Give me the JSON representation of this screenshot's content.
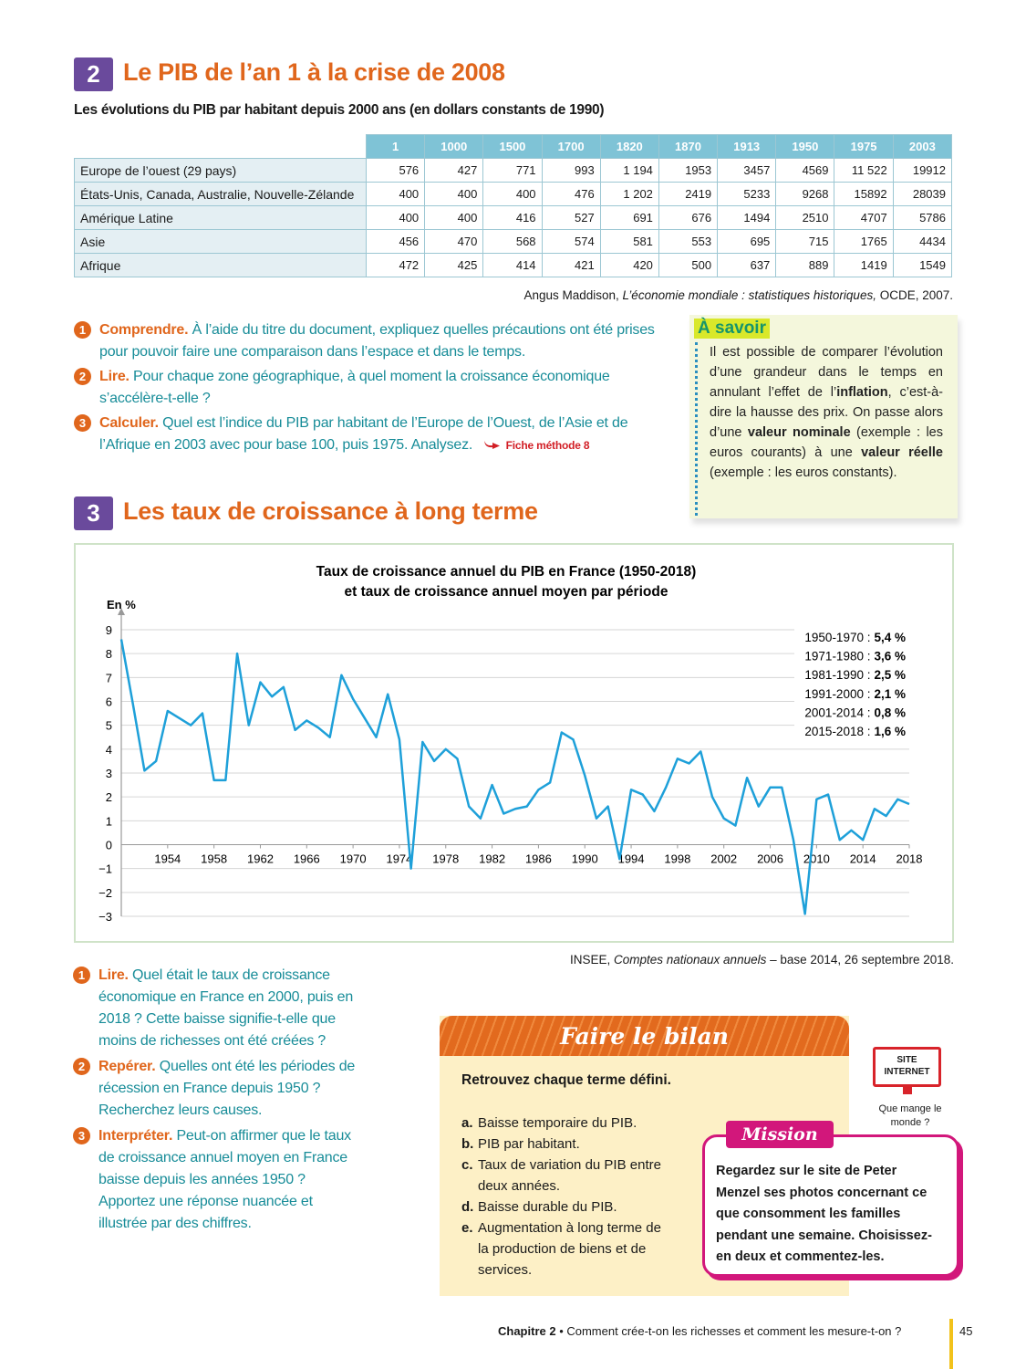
{
  "section2": {
    "number": "2",
    "title": "Le PIB de l’an 1 à la crise de 2008",
    "subtitle": "Les évolutions du PIB par habitant depuis 2000 ans (en dollars constants de 1990)"
  },
  "table": {
    "header": [
      "1",
      "1000",
      "1500",
      "1700",
      "1820",
      "1870",
      "1913",
      "1950",
      "1975",
      "2003"
    ],
    "rows": [
      [
        "Europe de l’ouest (29 pays)",
        "576",
        "427",
        "771",
        "993",
        "1 194",
        "1953",
        "3457",
        "4569",
        "11 522",
        "19912"
      ],
      [
        "États-Unis, Canada, Australie, Nouvelle-Zélande",
        "400",
        "400",
        "400",
        "476",
        "1 202",
        "2419",
        "5233",
        "9268",
        "15892",
        "28039"
      ],
      [
        "Amérique Latine",
        "400",
        "400",
        "416",
        "527",
        "691",
        "676",
        "1494",
        "2510",
        "4707",
        "5786"
      ],
      [
        "Asie",
        "456",
        "470",
        "568",
        "574",
        "581",
        "553",
        "695",
        "715",
        "1765",
        "4434"
      ],
      [
        "Afrique",
        "472",
        "425",
        "414",
        "421",
        "420",
        "500",
        "637",
        "889",
        "1419",
        "1549"
      ]
    ]
  },
  "source1": [
    "Angus Maddison, ",
    "L’économie mondiale : statistiques historiques,",
    " OCDE, 2007."
  ],
  "questions1": [
    {
      "number": "1",
      "label": "Comprendre.",
      "text": "À l’aide du titre du document, expliquez quelles précautions ont été prises pour pouvoir faire une comparaison dans l’espace et dans le temps."
    },
    {
      "number": "2",
      "label": "Lire.",
      "text": "Pour chaque zone géographique, à quel moment la croissance économique s’accélère-t-elle ?"
    },
    {
      "number": "3",
      "label": "Calculer.",
      "text": "Quel est l’indice du PIB par habitant de l’Europe de l’Ouest, de l’Asie et de l’Afrique en 2003 avec pour base 100, puis 1975. Analysez.",
      "method": "Fiche méthode 8"
    }
  ],
  "a_savoir": {
    "title": "À savoir",
    "parts": [
      "Il est possible de comparer l’évolution d’une grandeur dans le temps en annulant l’effet de l’",
      "inflation",
      ", c’est-à-dire la hausse des prix. On passe alors d’une ",
      "valeur nominale",
      " (exemple : les euros courants) à une ",
      "valeur réelle",
      " (exemple : les euros constants)."
    ]
  },
  "section3": {
    "number": "3",
    "title": "Les taux de croissance à long terme"
  },
  "chart_data": {
    "type": "line",
    "title": "Taux de croissance annuel du PIB en France (1950-2018)",
    "subtitle": "et taux de croissance annuel moyen par période",
    "y_label": "En %",
    "color": "#1ea0d9",
    "grid": true,
    "x": [
      1950,
      1951,
      1952,
      1953,
      1954,
      1955,
      1956,
      1957,
      1958,
      1959,
      1960,
      1961,
      1962,
      1963,
      1964,
      1965,
      1966,
      1967,
      1968,
      1969,
      1970,
      1971,
      1972,
      1973,
      1974,
      1975,
      1976,
      1977,
      1978,
      1979,
      1980,
      1981,
      1982,
      1983,
      1984,
      1985,
      1986,
      1987,
      1988,
      1989,
      1990,
      1991,
      1992,
      1993,
      1994,
      1995,
      1996,
      1997,
      1998,
      1999,
      2000,
      2001,
      2002,
      2003,
      2004,
      2005,
      2006,
      2007,
      2008,
      2009,
      2010,
      2011,
      2012,
      2013,
      2014,
      2015,
      2016,
      2017,
      2018
    ],
    "values": [
      8.6,
      5.9,
      3.1,
      3.5,
      5.6,
      5.3,
      5.0,
      5.5,
      2.7,
      2.7,
      8.0,
      5.0,
      6.8,
      6.2,
      6.6,
      4.8,
      5.2,
      4.9,
      4.5,
      7.1,
      6.1,
      5.3,
      4.5,
      6.3,
      4.4,
      -1.0,
      4.3,
      3.5,
      4.0,
      3.6,
      1.6,
      1.1,
      2.5,
      1.3,
      1.5,
      1.6,
      2.3,
      2.6,
      4.7,
      4.4,
      2.9,
      1.1,
      1.6,
      -0.6,
      2.3,
      2.1,
      1.4,
      2.4,
      3.6,
      3.4,
      3.9,
      2.0,
      1.1,
      0.8,
      2.8,
      1.6,
      2.4,
      2.4,
      0.2,
      -2.9,
      1.9,
      2.1,
      0.2,
      0.6,
      0.2,
      1.5,
      1.2,
      1.9,
      1.7
    ],
    "xlim": [
      1950,
      2018
    ],
    "xticks": [
      1954,
      1958,
      1962,
      1966,
      1970,
      1974,
      1978,
      1982,
      1986,
      1990,
      1994,
      1998,
      2002,
      2006,
      2010,
      2014,
      2018
    ],
    "ylim": [
      -3,
      9
    ],
    "yticks": [
      {
        "value": -3,
        "label": "−3"
      },
      {
        "value": -2,
        "label": "−2"
      },
      {
        "value": -1,
        "label": "−1"
      },
      0,
      1,
      2,
      3,
      4,
      5,
      6,
      7,
      8,
      9
    ],
    "annotations": [
      {
        "period": "1950-1970 :",
        "rate": "5,4 %"
      },
      {
        "period": "1971-1980 :",
        "rate": "3,6 %"
      },
      {
        "period": "1981-1990 :",
        "rate": "2,5 %"
      },
      {
        "period": "1991-2000 :",
        "rate": "2,1 %"
      },
      {
        "period": "2001-2014 :",
        "rate": "0,8 %"
      },
      {
        "period": "2015-2018 :",
        "rate": "1,6 %"
      }
    ]
  },
  "source2": [
    "INSEE, ",
    "Comptes nationaux annuels",
    " – base 2014, 26 septembre 2018."
  ],
  "questions2": [
    {
      "number": "1",
      "label": "Lire.",
      "text": "Quel était le taux de croissance économique en France en 2000, puis en 2018 ? Cette baisse signifie-t-elle que moins de richesses ont été créées ?"
    },
    {
      "number": "2",
      "label": "Repérer.",
      "text": "Quelles ont été les périodes de récession en France depuis 1950 ? Recherchez leurs causes."
    },
    {
      "number": "3",
      "label": "Interpréter.",
      "text": "Peut-on affirmer que le taux de croissance annuel moyen en France baisse depuis les années 1950 ? Apportez une réponse nuancée et illustrée par des chiffres."
    }
  ],
  "bilan": {
    "title": "Faire le bilan",
    "intro": "Retrouvez chaque terme défini.",
    "items": [
      {
        "letter": "a.",
        "text": "Baisse temporaire du PIB."
      },
      {
        "letter": "b.",
        "text": "PIB par habitant."
      },
      {
        "letter": "c.",
        "text": "Taux de variation du PIB entre deux années."
      },
      {
        "letter": "d.",
        "text": "Baisse durable du PIB."
      },
      {
        "letter": "e.",
        "text": "Augmentation à long terme de la production de biens et de services."
      }
    ]
  },
  "site": {
    "label": "SITE INTERNET",
    "caption": "Que mange le monde ?"
  },
  "mission": {
    "title": "Mission",
    "text": "Regardez sur le site de Peter Menzel ses photos concernant ce que consomment les familles pendant une semaine. Choisissez-en deux et commentez-les."
  },
  "footer": {
    "chapter": "Chapitre 2",
    "text": " • Comment crée-t-on les richesses et comment les mesure-t-on ?",
    "page": "45"
  }
}
